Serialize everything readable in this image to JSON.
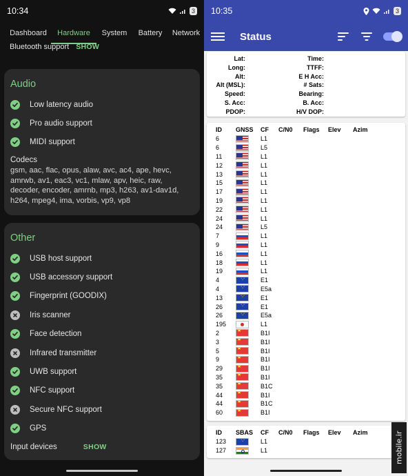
{
  "left": {
    "status_bar": {
      "time": "10:34",
      "badge": "3"
    },
    "tabs": [
      {
        "label": "Dashboard"
      },
      {
        "label": "Hardware"
      },
      {
        "label": "System"
      },
      {
        "label": "Battery"
      },
      {
        "label": "Network"
      }
    ],
    "bluetooth_row": {
      "label": "Bluetooth support",
      "action": "SHOW"
    },
    "audio": {
      "title": "Audio",
      "features": [
        {
          "label": "Low latency audio",
          "supported": true
        },
        {
          "label": "Pro audio support",
          "supported": true
        },
        {
          "label": "MIDI support",
          "supported": true
        }
      ],
      "codecs_label": "Codecs",
      "codecs_text": "gsm, aac, flac, opus, alaw, avc, ac4, ape, hevc, amrwb, av1, eac3, vc1, mlaw, apv, heic, raw, decoder, encoder, amrnb, mp3, h263, av1-dav1d, h264, mpeg4, ima, vorbis, vp9, vp8"
    },
    "other": {
      "title": "Other",
      "features": [
        {
          "label": "USB host support",
          "supported": true
        },
        {
          "label": "USB accessory support",
          "supported": true
        },
        {
          "label": "Fingerprint (GOODIX)",
          "supported": true
        },
        {
          "label": "Iris scanner",
          "supported": false
        },
        {
          "label": "Face detection",
          "supported": true
        },
        {
          "label": "Infrared transmitter",
          "supported": false
        },
        {
          "label": "UWB support",
          "supported": true
        },
        {
          "label": "NFC support",
          "supported": true
        },
        {
          "label": "Secure NFC support",
          "supported": false
        },
        {
          "label": "GPS",
          "supported": true
        }
      ],
      "input_devices": {
        "label": "Input devices",
        "action": "SHOW"
      }
    }
  },
  "right": {
    "status_bar": {
      "time": "10:35",
      "badge": "3"
    },
    "toolbar": {
      "title": "Status"
    },
    "location": {
      "left_labels": [
        "Lat:",
        "Long:",
        "Alt:",
        "Alt (MSL):",
        "Speed:",
        "S. Acc:",
        "PDOP:"
      ],
      "right_labels": [
        "Time:",
        "TTFF:",
        "E H Acc:",
        "# Sats:",
        "Bearing:",
        "B. Acc:",
        "H/V DOP:"
      ]
    },
    "gnss_table": {
      "headers": [
        "ID",
        "GNSS",
        "CF",
        "C/N0",
        "Flags",
        "Elev",
        "Azim"
      ],
      "rows": [
        {
          "id": "6",
          "flag": "us",
          "cf": "L1"
        },
        {
          "id": "6",
          "flag": "us",
          "cf": "L5"
        },
        {
          "id": "11",
          "flag": "us",
          "cf": "L1"
        },
        {
          "id": "12",
          "flag": "us",
          "cf": "L1"
        },
        {
          "id": "13",
          "flag": "us",
          "cf": "L1"
        },
        {
          "id": "15",
          "flag": "us",
          "cf": "L1"
        },
        {
          "id": "17",
          "flag": "us",
          "cf": "L1"
        },
        {
          "id": "19",
          "flag": "us",
          "cf": "L1"
        },
        {
          "id": "22",
          "flag": "us",
          "cf": "L1"
        },
        {
          "id": "24",
          "flag": "us",
          "cf": "L1"
        },
        {
          "id": "24",
          "flag": "us",
          "cf": "L5"
        },
        {
          "id": "7",
          "flag": "ru",
          "cf": "L1"
        },
        {
          "id": "9",
          "flag": "ru",
          "cf": "L1"
        },
        {
          "id": "16",
          "flag": "ru",
          "cf": "L1"
        },
        {
          "id": "18",
          "flag": "ru",
          "cf": "L1"
        },
        {
          "id": "19",
          "flag": "ru",
          "cf": "L1"
        },
        {
          "id": "4",
          "flag": "eu",
          "cf": "E1"
        },
        {
          "id": "4",
          "flag": "eu",
          "cf": "E5a"
        },
        {
          "id": "13",
          "flag": "eu",
          "cf": "E1"
        },
        {
          "id": "26",
          "flag": "eu",
          "cf": "E1"
        },
        {
          "id": "26",
          "flag": "eu",
          "cf": "E5a"
        },
        {
          "id": "195",
          "flag": "jp",
          "cf": "L1"
        },
        {
          "id": "2",
          "flag": "cn",
          "cf": "B1I"
        },
        {
          "id": "3",
          "flag": "cn",
          "cf": "B1I"
        },
        {
          "id": "5",
          "flag": "cn",
          "cf": "B1I"
        },
        {
          "id": "9",
          "flag": "cn",
          "cf": "B1I"
        },
        {
          "id": "29",
          "flag": "cn",
          "cf": "B1I"
        },
        {
          "id": "35",
          "flag": "cn",
          "cf": "B1I"
        },
        {
          "id": "35",
          "flag": "cn",
          "cf": "B1C"
        },
        {
          "id": "44",
          "flag": "cn",
          "cf": "B1I"
        },
        {
          "id": "44",
          "flag": "cn",
          "cf": "B1C"
        },
        {
          "id": "60",
          "flag": "cn",
          "cf": "B1I"
        }
      ]
    },
    "sbas_table": {
      "headers": [
        "ID",
        "SBAS",
        "CF",
        "C/N0",
        "Flags",
        "Elev",
        "Azim"
      ],
      "rows": [
        {
          "id": "123",
          "flag": "eu",
          "cf": "L1"
        },
        {
          "id": "127",
          "flag": "in",
          "cf": "L1"
        }
      ]
    },
    "watermark": "mobile.ir"
  }
}
